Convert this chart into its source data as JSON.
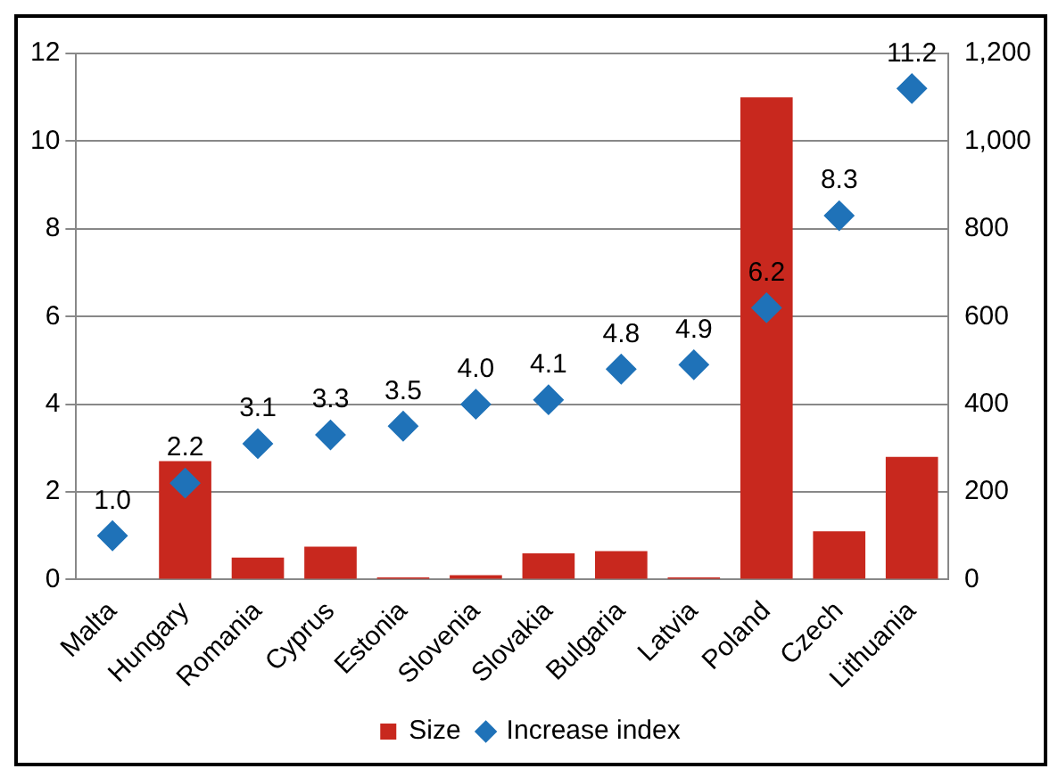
{
  "chart_data": {
    "type": "bar",
    "categories": [
      "Malta",
      "Hungary",
      "Romania",
      "Cyprus",
      "Estonia",
      "Slovenia",
      "Slovakia",
      "Bulgaria",
      "Latvia",
      "Poland",
      "Czech",
      "Lithuania"
    ],
    "series": [
      {
        "name": "Size",
        "color": "#c8281e",
        "values": [
          0,
          2.7,
          0.5,
          0.75,
          0.05,
          0.1,
          0.6,
          0.65,
          0.05,
          11,
          1.1,
          2.8
        ]
      },
      {
        "name": "Increase index",
        "type": "scatter",
        "marker": "diamond",
        "color": "#1f72b8",
        "values": [
          1.0,
          2.2,
          3.1,
          3.3,
          3.5,
          4.0,
          4.1,
          4.8,
          4.9,
          6.2,
          8.3,
          11.2
        ],
        "value_labels": [
          "1.0",
          "2.2",
          "3.1",
          "3.3",
          "3.5",
          "4.0",
          "4.1",
          "4.8",
          "4.9",
          "6.2",
          "8.3",
          "11.2"
        ]
      }
    ],
    "ylim": [
      0,
      12
    ],
    "yticks": [
      0,
      2,
      4,
      6,
      8,
      10,
      12
    ],
    "y2lim": [
      0,
      1200
    ],
    "y2ticks": [
      0,
      {
        "value": 200,
        "label": "200"
      },
      {
        "value": 400,
        "label": "400"
      },
      {
        "value": 600,
        "label": "600"
      },
      {
        "value": 800,
        "label": "800"
      },
      {
        "value": 1000,
        "label": "1,000"
      },
      {
        "value": 1200,
        "label": "1,200"
      }
    ],
    "grid": "y",
    "legend": "bottom"
  }
}
